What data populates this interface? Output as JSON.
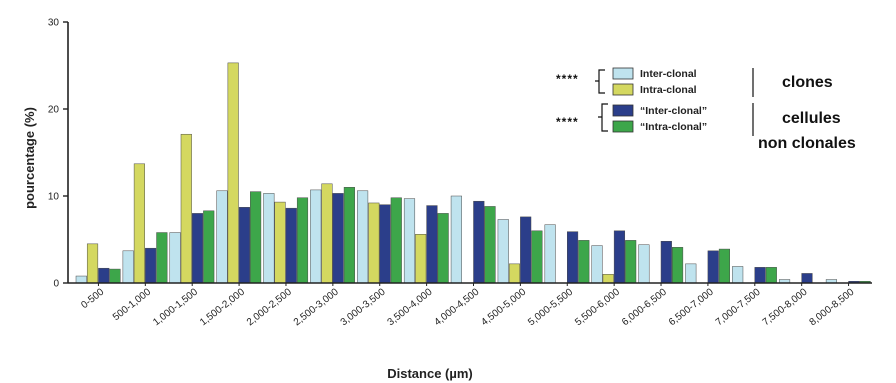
{
  "chart_data": {
    "type": "bar",
    "xlabel": "Distance (µm)",
    "ylabel": "pourcentage (%)",
    "ylim": [
      0,
      30
    ],
    "yticks": [
      "0",
      "10",
      "20",
      "30"
    ],
    "categories": [
      "0-500",
      "500-1,000",
      "1,000-1,500",
      "1,500-2,000",
      "2,000-2,500",
      "2,500-3,000",
      "3,000-3,500",
      "3,500-4,000",
      "4,000-4,500",
      "4,500-5,000",
      "5,000-5,500",
      "5,500-6,000",
      "6,000-6,500",
      "6,500-7,000",
      "7,000-7,500",
      "7,500-8,000",
      "8,000-8,500"
    ],
    "series": [
      {
        "name": "Inter-clonal",
        "color": "#bfe3ee",
        "values": [
          0.8,
          3.7,
          5.8,
          10.6,
          10.3,
          10.7,
          10.6,
          9.7,
          10.0,
          7.3,
          6.7,
          4.3,
          4.4,
          2.2,
          1.9,
          0.4,
          0.4
        ]
      },
      {
        "name": "Intra-clonal",
        "color": "#d4d860",
        "values": [
          4.5,
          13.7,
          17.1,
          25.3,
          9.3,
          11.4,
          9.2,
          5.6,
          0,
          2.2,
          0,
          1.0,
          0,
          0,
          0,
          0,
          0
        ]
      },
      {
        "name": "“Inter-clonal”",
        "color": "#2b3e8a",
        "values": [
          1.7,
          4.0,
          8.0,
          8.7,
          8.6,
          10.3,
          9.0,
          8.9,
          9.4,
          7.6,
          5.9,
          6.0,
          4.8,
          3.7,
          1.8,
          1.1,
          0.2
        ]
      },
      {
        "name": "“Intra-clonal”",
        "color": "#3da64a",
        "values": [
          1.6,
          5.8,
          8.3,
          10.5,
          9.8,
          11.0,
          9.8,
          8.0,
          8.8,
          6.0,
          4.9,
          4.9,
          4.1,
          3.9,
          1.8,
          0,
          0.2
        ]
      }
    ],
    "legend": {
      "placement": "top-right",
      "significance": [
        "****",
        "****"
      ],
      "groups": [
        "clones",
        "cellules",
        "non clonales"
      ]
    },
    "grid": false
  }
}
